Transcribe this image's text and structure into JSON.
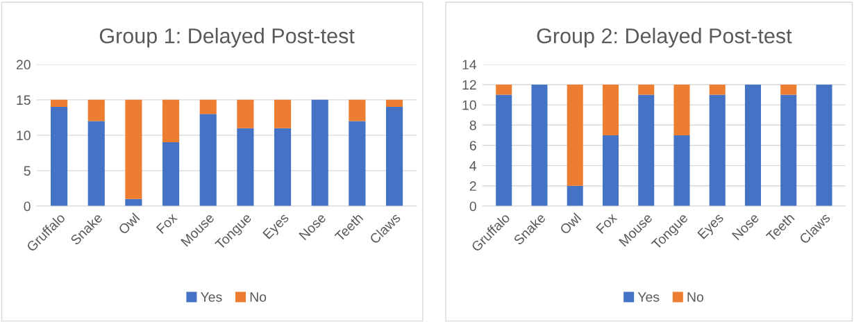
{
  "chart_data": [
    {
      "type": "bar",
      "title": "Group 1: Delayed Post-test",
      "stacked": true,
      "categories": [
        "Gruffalo",
        "Snake",
        "Owl",
        "Fox",
        "Mouse",
        "Tongue",
        "Eyes",
        "Nose",
        "Teeth",
        "Claws"
      ],
      "series": [
        {
          "name": "Yes",
          "color": "#4472c4",
          "values": [
            14,
            12,
            1,
            9,
            13,
            11,
            11,
            15,
            12,
            14
          ]
        },
        {
          "name": "No",
          "color": "#ed7d31",
          "values": [
            1,
            3,
            14,
            6,
            2,
            4,
            4,
            0,
            3,
            1
          ]
        }
      ],
      "ylim": [
        0,
        20
      ],
      "yticks": [
        0,
        5,
        10,
        15,
        20
      ],
      "grid": "y",
      "legend": "bottom"
    },
    {
      "type": "bar",
      "title": "Group 2: Delayed Post-test",
      "stacked": true,
      "categories": [
        "Gruffalo",
        "Snake",
        "Owl",
        "Fox",
        "Mouse",
        "Tongue",
        "Eyes",
        "Nose",
        "Teeth",
        "Claws"
      ],
      "series": [
        {
          "name": "Yes",
          "color": "#4472c4",
          "values": [
            11,
            12,
            2,
            7,
            11,
            7,
            11,
            12,
            11,
            12
          ]
        },
        {
          "name": "No",
          "color": "#ed7d31",
          "values": [
            1,
            0,
            10,
            5,
            1,
            5,
            1,
            0,
            1,
            0
          ]
        }
      ],
      "ylim": [
        0,
        14
      ],
      "yticks": [
        0,
        2,
        4,
        6,
        8,
        10,
        12,
        14
      ],
      "grid": "y",
      "legend": "bottom"
    }
  ]
}
